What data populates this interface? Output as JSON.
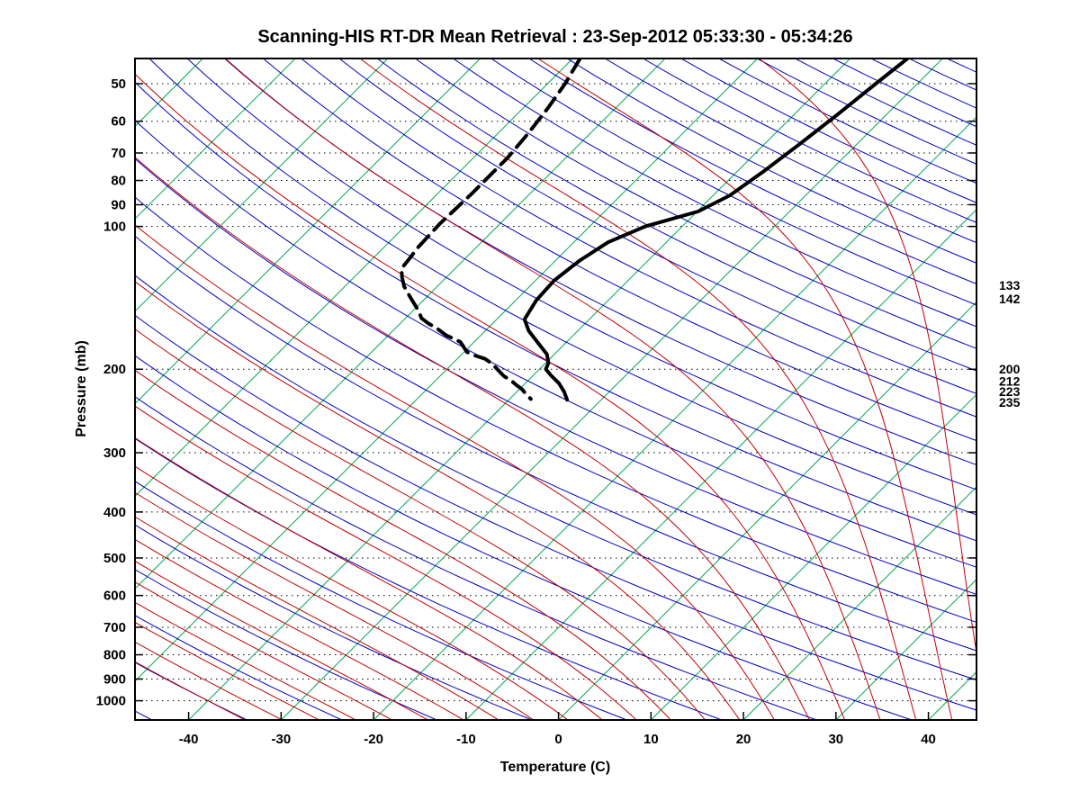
{
  "title": "Scanning-HIS RT-DR Mean Retrieval : 23-Sep-2012 05:33:30 - 05:34:26",
  "chart_data": {
    "type": "line",
    "subtype": "skew-t-log-p-sounding",
    "title": "Scanning-HIS RT-DR Mean Retrieval : 23-Sep-2012 05:33:30 - 05:34:26",
    "xlabel": "Temperature (C)",
    "ylabel": "Pressure (mb)",
    "x_ticks_c": [
      -40,
      -30,
      -20,
      -10,
      0,
      10,
      20,
      30,
      40
    ],
    "pressure_ticks_mb": [
      50,
      60,
      70,
      80,
      90,
      100,
      200,
      300,
      400,
      500,
      600,
      700,
      800,
      900,
      1000
    ],
    "pressure_range_mb": [
      44.25,
      1098
    ],
    "temp_range_at_bottom_axis_c": [
      -45.8,
      45.2
    ],
    "skew_isotherm_angle_deg": 45,
    "grid": "dotted horizontal lines at labeled pressure levels",
    "legend": "none",
    "right_axis_annotations_mb": [
      133,
      142,
      200,
      212,
      223,
      235
    ],
    "colors": {
      "isotherm": "#00A651",
      "dry_adiabat": "#0000C0",
      "moist_adiabat": "#C00000",
      "temperature_curve": "#000000",
      "dewpoint_curve": "#000000",
      "gridline": "#000000",
      "frame": "#000000"
    },
    "background_lines": {
      "isotherms_c": {
        "start": -150,
        "end": 40,
        "step": 10
      },
      "dry_adiabats_theta_c": {
        "start": -50,
        "end": 340,
        "step": 10
      },
      "moist_adiabats_thetaw_c": {
        "start": -40,
        "end": 44,
        "step": 4
      }
    },
    "series": [
      {
        "name": "temperature",
        "style": "solid",
        "points_p_t": [
          [
            44.3,
            -33.8
          ],
          [
            50,
            -34.5
          ],
          [
            58,
            -35.3
          ],
          [
            67,
            -36.2
          ],
          [
            77,
            -37.2
          ],
          [
            86,
            -38.2
          ],
          [
            93,
            -39.9
          ],
          [
            100,
            -44.0
          ],
          [
            108,
            -46.3
          ],
          [
            118,
            -47.4
          ],
          [
            130,
            -48.0
          ],
          [
            143,
            -47.8
          ],
          [
            157,
            -47.0
          ],
          [
            166,
            -45.3
          ],
          [
            176,
            -43.0
          ],
          [
            186,
            -40.8
          ],
          [
            194,
            -39.7
          ],
          [
            200,
            -39.3
          ],
          [
            206,
            -38.1
          ],
          [
            214,
            -36.4
          ],
          [
            223,
            -34.9
          ],
          [
            232,
            -33.7
          ]
        ]
      },
      {
        "name": "dewpoint",
        "style": "dashed",
        "points_p_t": [
          [
            44.3,
            -69.2
          ],
          [
            50,
            -68.1
          ],
          [
            56.5,
            -67.3
          ],
          [
            64,
            -66.7
          ],
          [
            71.6,
            -66.3
          ],
          [
            78,
            -66.3
          ],
          [
            85,
            -66.3
          ],
          [
            92,
            -66.4
          ],
          [
            98.6,
            -66.5
          ],
          [
            105,
            -66.4
          ],
          [
            111,
            -66.3
          ],
          [
            117,
            -66.0
          ],
          [
            122.7,
            -65.8
          ],
          [
            128,
            -64.8
          ],
          [
            133.7,
            -63.6
          ],
          [
            140,
            -62.0
          ],
          [
            146,
            -60.5
          ],
          [
            151,
            -59.3
          ],
          [
            156,
            -58.3
          ],
          [
            160,
            -57.0
          ],
          [
            163.7,
            -55.6
          ],
          [
            169.5,
            -53.8
          ],
          [
            175.2,
            -51.5
          ],
          [
            180,
            -50.5
          ],
          [
            184,
            -49.7
          ],
          [
            187,
            -48.5
          ],
          [
            190.2,
            -47.0
          ],
          [
            194,
            -45.9
          ],
          [
            198.4,
            -44.9
          ],
          [
            203,
            -43.9
          ],
          [
            206.8,
            -43.1
          ],
          [
            211,
            -41.9
          ],
          [
            215.9,
            -40.8
          ],
          [
            220,
            -39.8
          ],
          [
            225.4,
            -38.8
          ],
          [
            231.2,
            -37.7
          ]
        ]
      }
    ]
  }
}
